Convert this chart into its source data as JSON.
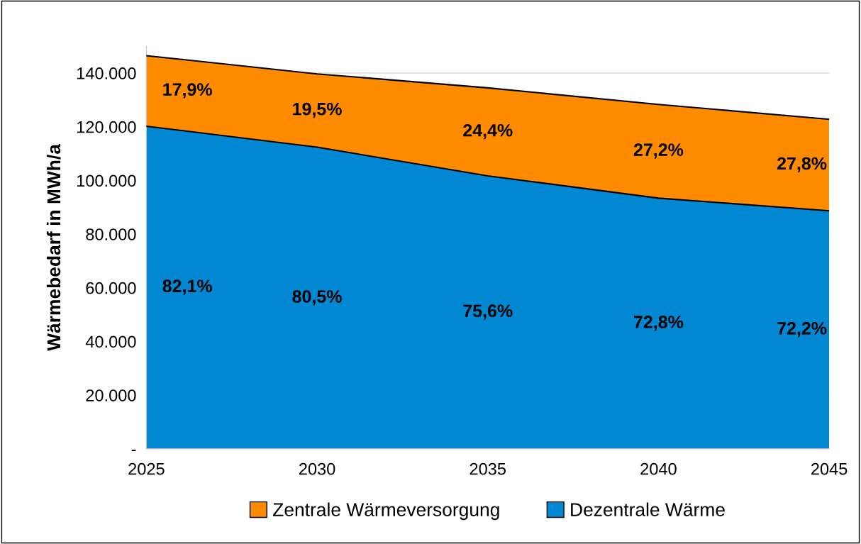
{
  "chart_data": {
    "type": "area",
    "stacked": true,
    "ylabel": "Wärmebedarf in MWh/a",
    "x": [
      2025,
      2030,
      2035,
      2040,
      2045
    ],
    "series": [
      {
        "name": "Dezentrale Wärme",
        "color": "#0288d2",
        "values": [
          120200,
          112400,
          101700,
          93400,
          88700
        ]
      },
      {
        "name": "Zentrale Wärmeversorgung",
        "color": "#ff8c00",
        "values": [
          26300,
          27300,
          32800,
          34900,
          34100
        ]
      }
    ],
    "xlim": [
      2025,
      2045
    ],
    "xticks": [
      2025,
      2030,
      2035,
      2040,
      2045
    ],
    "ylim": [
      0,
      150000
    ],
    "yticks": [
      {
        "value": 0,
        "label": "-"
      },
      {
        "value": 20000,
        "label": "20.000"
      },
      {
        "value": 40000,
        "label": "40.000"
      },
      {
        "value": 60000,
        "label": "60.000"
      },
      {
        "value": 80000,
        "label": "80.000"
      },
      {
        "value": 100000,
        "label": "100.000"
      },
      {
        "value": 120000,
        "label": "120.000"
      },
      {
        "value": 140000,
        "label": "140.000"
      }
    ],
    "grid": "y",
    "legend": "bottom",
    "annotations": [
      "82,1%",
      "80,5%",
      "75,6%",
      "72,8%",
      "72,2%",
      "17,9%",
      "19,5%",
      "24,4%",
      "27,2%",
      "27,8%"
    ]
  }
}
